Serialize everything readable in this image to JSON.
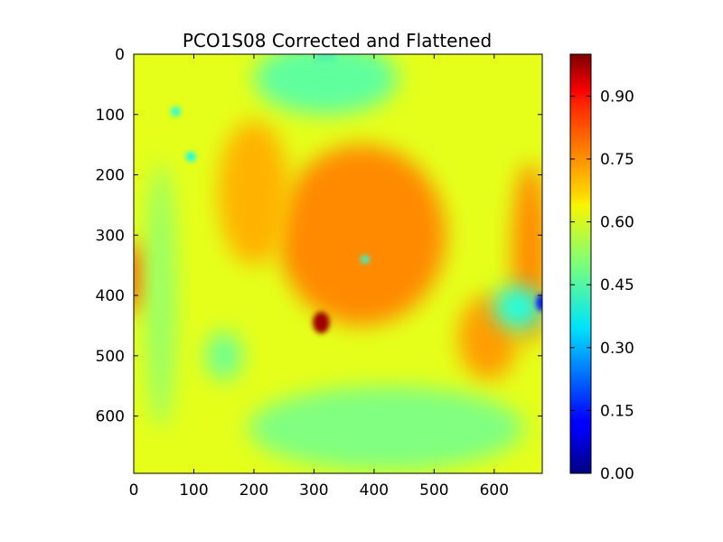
{
  "chart_data": {
    "type": "heatmap",
    "title": "PCO1S08 Corrected and Flattened",
    "xlabel": "",
    "ylabel": "",
    "xlim": [
      0,
      680
    ],
    "ylim": [
      695,
      0
    ],
    "x_ticks": [
      "0",
      "100",
      "200",
      "300",
      "400",
      "500",
      "600"
    ],
    "x_tick_values": [
      0,
      100,
      200,
      300,
      400,
      500,
      600
    ],
    "y_ticks": [
      "0",
      "100",
      "200",
      "300",
      "400",
      "500",
      "600"
    ],
    "y_tick_values": [
      0,
      100,
      200,
      300,
      400,
      500,
      600
    ],
    "colormap": "jet",
    "colorbar": {
      "range": [
        0.0,
        1.0
      ],
      "ticks": [
        "0.00",
        "0.15",
        "0.30",
        "0.45",
        "0.60",
        "0.75",
        "0.90"
      ],
      "tick_values": [
        0.0,
        0.15,
        0.3,
        0.45,
        0.6,
        0.75,
        0.9
      ]
    },
    "base_value": 0.6,
    "features": [
      {
        "name": "central-plateau",
        "cx": 380,
        "cy": 300,
        "rx": 140,
        "ry": 150,
        "value": 0.74
      },
      {
        "name": "upper-left-warm",
        "cx": 200,
        "cy": 230,
        "rx": 60,
        "ry": 120,
        "value": 0.7
      },
      {
        "name": "left-edge-hot",
        "cx": 0,
        "cy": 370,
        "rx": 18,
        "ry": 60,
        "value": 0.8
      },
      {
        "name": "right-edge-warm",
        "cx": 660,
        "cy": 330,
        "rx": 30,
        "ry": 150,
        "value": 0.74
      },
      {
        "name": "lower-right-warm",
        "cx": 590,
        "cy": 470,
        "rx": 50,
        "ry": 70,
        "value": 0.72
      },
      {
        "name": "hot-spot",
        "cx": 312,
        "cy": 445,
        "rx": 14,
        "ry": 18,
        "value": 0.97
      },
      {
        "name": "cool-right-pocket",
        "cx": 640,
        "cy": 420,
        "rx": 40,
        "ry": 35,
        "value": 0.4
      },
      {
        "name": "deep-blue-right",
        "cx": 678,
        "cy": 412,
        "rx": 8,
        "ry": 14,
        "value": 0.15
      },
      {
        "name": "top-blue-spot",
        "cx": 320,
        "cy": 12,
        "rx": 18,
        "ry": 18,
        "value": 0.18
      },
      {
        "name": "top-cyan-band",
        "cx": 320,
        "cy": 40,
        "rx": 120,
        "ry": 60,
        "value": 0.47
      },
      {
        "name": "bottom-green-band",
        "cx": 420,
        "cy": 620,
        "rx": 230,
        "ry": 70,
        "value": 0.5
      },
      {
        "name": "left-green-strip",
        "cx": 45,
        "cy": 400,
        "rx": 25,
        "ry": 220,
        "value": 0.52
      },
      {
        "name": "small-cyan-dot",
        "cx": 385,
        "cy": 340,
        "rx": 7,
        "ry": 7,
        "value": 0.4
      },
      {
        "name": "cyan-dot-left",
        "cx": 95,
        "cy": 170,
        "rx": 8,
        "ry": 8,
        "value": 0.38
      },
      {
        "name": "cyan-dot-topleft",
        "cx": 70,
        "cy": 95,
        "rx": 8,
        "ry": 8,
        "value": 0.4
      },
      {
        "name": "left-green-blob",
        "cx": 150,
        "cy": 500,
        "rx": 30,
        "ry": 40,
        "value": 0.48
      }
    ]
  }
}
